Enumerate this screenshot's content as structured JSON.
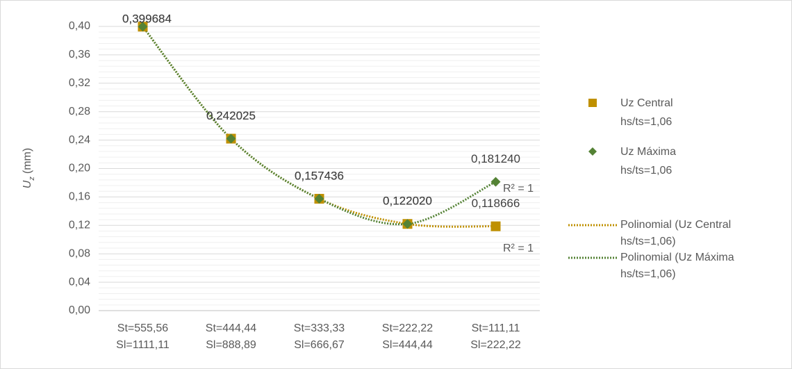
{
  "chart_data": {
    "type": "line",
    "ylabel": {
      "symbol": "U",
      "subscript": "z",
      "unit": "(mm)"
    },
    "categories": [
      [
        "St=555,56",
        "Sl=1111,11"
      ],
      [
        "St=444,44",
        "Sl=888,89"
      ],
      [
        "St=333,33",
        "Sl=666,67"
      ],
      [
        "St=222,22",
        "Sl=444,44"
      ],
      [
        "St=111,11",
        "Sl=222,22"
      ]
    ],
    "series": [
      {
        "name": [
          "Uz Central",
          "hs/ts=1,06"
        ],
        "color": "#bf9000",
        "marker": "square",
        "values": [
          0.399684,
          0.242025,
          0.157436,
          0.12202,
          0.118666
        ],
        "value_labels": [
          "0,399684",
          "0,242025",
          "0,157436",
          "0,122020",
          "0,118666"
        ]
      },
      {
        "name": [
          "Uz Máxima",
          "hs/ts=1,06"
        ],
        "color": "#548235",
        "marker": "diamond",
        "values": [
          0.399684,
          0.242025,
          0.157436,
          0.12202,
          0.18124
        ],
        "value_labels": [
          "0,399684",
          "0,242025",
          "0,157436",
          "0,122020",
          "0,181240"
        ]
      }
    ],
    "trendlines": [
      {
        "series": 0,
        "name": [
          "Polinomial (Uz Central",
          "hs/ts=1,06)"
        ],
        "color": "#bf9000",
        "r2_label": "R² = 1"
      },
      {
        "series": 1,
        "name": [
          "Polinomial (Uz Máxima",
          "hs/ts=1,06)"
        ],
        "color": "#548235",
        "r2_label": "R² = 1"
      }
    ],
    "ylim": [
      0,
      0.4
    ],
    "yticks": [
      {
        "value": 0,
        "label": "0,00"
      },
      {
        "value": 0.04,
        "label": "0,04"
      },
      {
        "value": 0.08,
        "label": "0,08"
      },
      {
        "value": 0.12,
        "label": "0,12"
      },
      {
        "value": 0.16,
        "label": "0,16"
      },
      {
        "value": 0.2,
        "label": "0,20"
      },
      {
        "value": 0.24,
        "label": "0,24"
      },
      {
        "value": 0.28,
        "label": "0,28"
      },
      {
        "value": 0.32,
        "label": "0,32"
      },
      {
        "value": 0.36,
        "label": "0,36"
      },
      {
        "value": 0.4,
        "label": "0,40"
      }
    ],
    "grid": true,
    "minor_grid": true,
    "legend": "right"
  }
}
